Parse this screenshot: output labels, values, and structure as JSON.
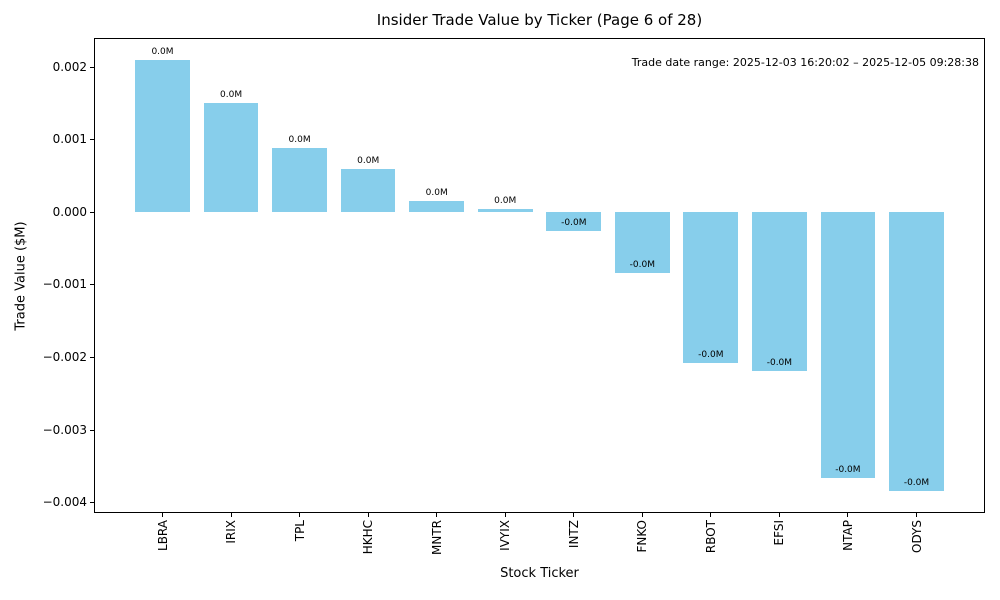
{
  "chart_data": {
    "type": "bar",
    "title": "Insider Trade Value by Ticker (Page 6 of 28)",
    "xlabel": "Stock Ticker",
    "ylabel": "Trade Value ($M)",
    "annotation": "Trade date range: 2025-12-03 16:20:02 – 2025-12-05 09:28:38",
    "categories": [
      "LBRA",
      "IRIX",
      "TPL",
      "HKHC",
      "MNTR",
      "IVYIX",
      "INTZ",
      "FNKO",
      "RBOT",
      "EFSI",
      "NTAP",
      "ODYS"
    ],
    "values": [
      0.0021,
      0.0015,
      0.00088,
      0.0006,
      0.00015,
      5e-05,
      -0.00026,
      -0.00084,
      -0.00207,
      -0.00219,
      -0.00366,
      -0.00384
    ],
    "bar_labels": [
      "0.0M",
      "0.0M",
      "0.0M",
      "0.0M",
      "0.0M",
      "0.0M",
      "-0.0M",
      "-0.0M",
      "-0.0M",
      "-0.0M",
      "-0.0M",
      "-0.0M"
    ],
    "yticks": [
      0.002,
      0.001,
      0,
      -0.001,
      -0.002,
      -0.003,
      -0.004
    ],
    "ytick_labels": [
      "0.002",
      "0.001",
      "0.000",
      "−0.001",
      "−0.002",
      "−0.003",
      "−0.004"
    ],
    "ylim": [
      -0.00414,
      0.0024
    ],
    "xlim": [
      -1,
      12
    ],
    "bar_width_units": 0.8,
    "bar_color": "#87CEEB",
    "spine_color": "#000000",
    "grid": false,
    "legend": false
  }
}
